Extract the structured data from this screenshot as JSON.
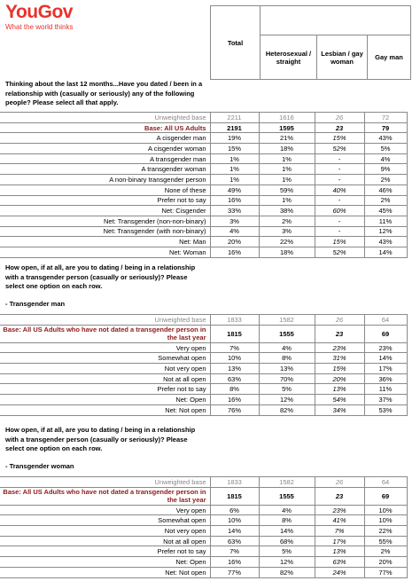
{
  "brand": {
    "name": "YouGov",
    "tagline": "What the world thinks"
  },
  "header": {
    "total": "Total",
    "columns": [
      "Heterosexual / straight",
      "Lesbian / gay woman",
      "Gay man"
    ]
  },
  "sections": [
    {
      "question": "Thinking about the last 12 months...Have you dated / been in a relationship with (casually or seriously) any of the following people? Please select all that apply.",
      "subheading": "",
      "rows": [
        {
          "label": "Unweighted base",
          "kind": "unw",
          "cells": [
            "2211",
            "1616",
            "26",
            "72"
          ]
        },
        {
          "label": "Base: All US Adults",
          "kind": "base",
          "cells": [
            "2191",
            "1595",
            "23",
            "79"
          ]
        },
        {
          "label": "A cisgender man",
          "cells": [
            "19%",
            "21%",
            "15%",
            "43%"
          ]
        },
        {
          "label": "A cisgender woman",
          "cells": [
            "15%",
            "18%",
            "52%",
            "5%"
          ]
        },
        {
          "label": "A transgender man",
          "cells": [
            "1%",
            "1%",
            "-",
            "4%"
          ]
        },
        {
          "label": "A transgender woman",
          "cells": [
            "1%",
            "1%",
            "-",
            "9%"
          ]
        },
        {
          "label": "A non-binary transgender person",
          "cells": [
            "1%",
            "1%",
            "-",
            "2%"
          ]
        },
        {
          "label": "None of these",
          "cells": [
            "49%",
            "59%",
            "40%",
            "46%"
          ]
        },
        {
          "label": "Prefer not to say",
          "cells": [
            "16%",
            "1%",
            "-",
            "2%"
          ]
        },
        {
          "label": "Net: Cisgender",
          "cells": [
            "33%",
            "38%",
            "60%",
            "45%"
          ]
        },
        {
          "label": "Net: Transgender (non-non-binary)",
          "cells": [
            "3%",
            "2%",
            "-",
            "11%"
          ]
        },
        {
          "label": "Net: Transgender (with non-binary)",
          "cells": [
            "4%",
            "3%",
            "-",
            "12%"
          ]
        },
        {
          "label": "Net: Man",
          "cells": [
            "20%",
            "22%",
            "15%",
            "43%"
          ]
        },
        {
          "label": "Net: Woman",
          "cells": [
            "16%",
            "18%",
            "52%",
            "14%"
          ]
        }
      ]
    },
    {
      "question": "How open, if at all, are you to dating / being in a relationship with a transgender person (casually or seriously)? Please select one option on each row.",
      "subheading": "- Transgender man",
      "rows": [
        {
          "label": "Unweighted base",
          "kind": "unw",
          "cells": [
            "1833",
            "1582",
            "26",
            "64"
          ]
        },
        {
          "label": "Base: All US Adults who have not dated a transgender person in the last year",
          "kind": "base",
          "tall": true,
          "cells": [
            "1815",
            "1555",
            "23",
            "69"
          ]
        },
        {
          "label": "Very open",
          "cells": [
            "7%",
            "4%",
            "23%",
            "23%"
          ]
        },
        {
          "label": "Somewhat open",
          "cells": [
            "10%",
            "8%",
            "31%",
            "14%"
          ]
        },
        {
          "label": "Not very open",
          "cells": [
            "13%",
            "13%",
            "15%",
            "17%"
          ]
        },
        {
          "label": "Not at all open",
          "cells": [
            "63%",
            "70%",
            "20%",
            "36%"
          ]
        },
        {
          "label": "Prefer not to say",
          "cells": [
            "8%",
            "5%",
            "13%",
            "11%"
          ]
        },
        {
          "label": "Net: Open",
          "cells": [
            "16%",
            "12%",
            "54%",
            "37%"
          ]
        },
        {
          "label": "Net: Not open",
          "cells": [
            "76%",
            "82%",
            "34%",
            "53%"
          ]
        }
      ]
    },
    {
      "question": "How open, if at all, are you to dating / being in a relationship with a transgender person (casually or seriously)? Please select one option on each row.",
      "subheading": "- Transgender woman",
      "rows": [
        {
          "label": "Unweighted base",
          "kind": "unw",
          "cells": [
            "1833",
            "1582",
            "26",
            "64"
          ]
        },
        {
          "label": "Base: All US Adults who have not dated a transgender person in the last year",
          "kind": "base",
          "tall": true,
          "cells": [
            "1815",
            "1555",
            "23",
            "69"
          ]
        },
        {
          "label": "Very open",
          "cells": [
            "6%",
            "4%",
            "23%",
            "10%"
          ]
        },
        {
          "label": "Somewhat open",
          "cells": [
            "10%",
            "8%",
            "41%",
            "10%"
          ]
        },
        {
          "label": "Not very open",
          "cells": [
            "14%",
            "14%",
            "7%",
            "22%"
          ]
        },
        {
          "label": "Not at all open",
          "cells": [
            "63%",
            "68%",
            "17%",
            "55%"
          ]
        },
        {
          "label": "Prefer not to say",
          "cells": [
            "7%",
            "5%",
            "13%",
            "2%"
          ]
        },
        {
          "label": "Net: Open",
          "cells": [
            "16%",
            "12%",
            "63%",
            "20%"
          ]
        },
        {
          "label": "Net: Not open",
          "cells": [
            "77%",
            "82%",
            "24%",
            "77%"
          ]
        }
      ]
    }
  ]
}
